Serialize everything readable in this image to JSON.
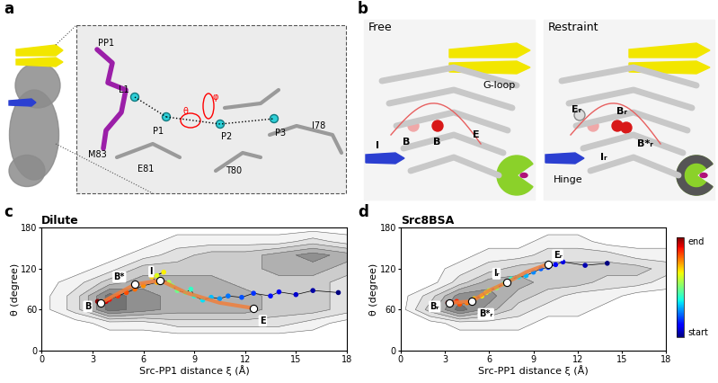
{
  "panel_labels": [
    "a",
    "b",
    "c",
    "d"
  ],
  "panel_a": {
    "labels": [
      "PP1",
      "L1",
      "M83",
      "P1",
      "E81",
      "P2",
      "T80",
      "P3",
      "I78",
      "θ",
      "φ"
    ]
  },
  "panel_b": {
    "left": {
      "title": "Free",
      "labels": [
        "G-loop",
        "B",
        "I",
        "B",
        "E"
      ]
    },
    "right": {
      "title": "Restraint",
      "labels": [
        "Eᵣ",
        "Bᵣ",
        "B*ᵣ",
        "Iᵣ",
        "Hinge"
      ]
    }
  },
  "chart_data": [
    {
      "type": "scatter",
      "title": "Dilute",
      "x_label": "Src-PP1 distance ξ (Å)",
      "y_label": "θ (degree)",
      "xlim": [
        0,
        18
      ],
      "ylim": [
        0,
        180
      ],
      "xticks": [
        0,
        3,
        6,
        9,
        12,
        15,
        18
      ],
      "yticks": [
        0,
        60,
        120,
        180
      ],
      "landscape": {
        "x": [
          0,
          2,
          4,
          6,
          8,
          10,
          12,
          14,
          16,
          18
        ],
        "y": [
          0,
          20,
          40,
          60,
          80,
          100,
          120,
          140,
          160,
          180
        ],
        "z": [
          [
            0,
            0,
            0,
            0,
            0,
            0,
            0,
            0,
            0,
            0
          ],
          [
            0,
            0,
            0,
            0,
            0,
            0,
            0,
            0,
            0,
            0
          ],
          [
            0,
            0,
            1,
            1,
            2,
            2,
            2,
            2,
            1,
            0
          ],
          [
            0,
            2,
            6,
            5,
            4,
            4,
            4,
            3,
            3,
            2
          ],
          [
            0,
            2,
            6,
            5,
            4,
            4,
            4,
            3,
            3,
            2
          ],
          [
            0,
            1,
            3,
            4,
            4,
            4,
            3,
            3,
            3,
            2
          ],
          [
            0,
            0,
            1,
            3,
            3,
            3,
            3,
            4,
            4,
            3
          ],
          [
            0,
            0,
            0,
            1,
            2,
            3,
            3,
            4,
            5,
            4
          ],
          [
            0,
            0,
            0,
            0,
            1,
            1,
            1,
            1,
            2,
            1
          ],
          [
            0,
            0,
            0,
            0,
            0,
            0,
            0,
            0,
            0,
            0
          ]
        ]
      },
      "trajectory": {
        "x": [
          17.5,
          16,
          15,
          14,
          13.5,
          12.5,
          11.8,
          11,
          10.5,
          10,
          9.5,
          9,
          8.8,
          8.5,
          8,
          7.7,
          7.5,
          7,
          6.8,
          7.2,
          6.5,
          6.8,
          6,
          5.5,
          5,
          4.5,
          4,
          3.8,
          3.5,
          3.3
        ],
        "y": [
          85,
          88,
          82,
          86,
          80,
          84,
          78,
          80,
          76,
          78,
          74,
          80,
          90,
          85,
          88,
          95,
          100,
          105,
          110,
          115,
          108,
          100,
          95,
          90,
          85,
          80,
          75,
          72,
          70,
          72
        ]
      },
      "path": {
        "x": [
          3.5,
          5.5,
          7,
          8.5,
          10.5,
          12.5
        ],
        "y": [
          70,
          97,
          103,
          85,
          70,
          62
        ],
        "color": "#f07f3c"
      },
      "states": [
        {
          "label": "B",
          "x": 3.5,
          "y": 70
        },
        {
          "label": "B*",
          "x": 5.5,
          "y": 97
        },
        {
          "label": "I",
          "x": 7,
          "y": 103
        },
        {
          "label": "E",
          "x": 12.5,
          "y": 62
        }
      ]
    },
    {
      "type": "scatter",
      "title": "Src8BSA",
      "x_label": "Src-PP1 distance ξ (Å)",
      "y_label": "θ (degree)",
      "xlim": [
        0,
        18
      ],
      "ylim": [
        0,
        180
      ],
      "xticks": [
        0,
        3,
        6,
        9,
        12,
        15,
        18
      ],
      "yticks": [
        0,
        60,
        120,
        180
      ],
      "landscape": {
        "x": [
          0,
          2,
          4,
          6,
          8,
          10,
          12,
          14,
          16,
          18
        ],
        "y": [
          0,
          20,
          40,
          60,
          80,
          100,
          120,
          140,
          160,
          180
        ],
        "z": [
          [
            0,
            0,
            0,
            0,
            0,
            0,
            0,
            0,
            0,
            0
          ],
          [
            0,
            0,
            0,
            0,
            0,
            0,
            0,
            0,
            0,
            0
          ],
          [
            0,
            0,
            1,
            1,
            1,
            0,
            0,
            0,
            0,
            0
          ],
          [
            0,
            3,
            6,
            4,
            2,
            1,
            1,
            0,
            0,
            0
          ],
          [
            0,
            2,
            5,
            5,
            3,
            2,
            1,
            1,
            0,
            0
          ],
          [
            0,
            0,
            2,
            4,
            4,
            3,
            3,
            2,
            2,
            1
          ],
          [
            0,
            0,
            1,
            2,
            3,
            3,
            3,
            3,
            3,
            2
          ],
          [
            0,
            0,
            0,
            1,
            1,
            2,
            2,
            2,
            1,
            1
          ],
          [
            0,
            0,
            0,
            0,
            0,
            1,
            1,
            0,
            0,
            0
          ],
          [
            0,
            0,
            0,
            0,
            0,
            0,
            0,
            0,
            0,
            0
          ]
        ]
      },
      "trajectory": {
        "x": [
          14,
          12.5,
          11,
          10.5,
          10,
          9.5,
          9,
          8.5,
          8,
          7.5,
          7.2,
          7,
          6.5,
          6,
          5.8,
          5.5,
          5,
          4.8,
          4.5,
          4,
          3.8,
          3.5,
          3.3,
          3.2
        ],
        "y": [
          128,
          125,
          130,
          126,
          122,
          120,
          115,
          110,
          108,
          105,
          100,
          98,
          92,
          88,
          85,
          80,
          76,
          72,
          70,
          68,
          72,
          70,
          68,
          70
        ]
      },
      "path": {
        "x": [
          3.3,
          4.8,
          6,
          7.2,
          8.5,
          10
        ],
        "y": [
          70,
          72,
          88,
          100,
          115,
          127
        ],
        "color": "#f07f3c"
      },
      "states": [
        {
          "label": "Bᵣ",
          "x": 3.3,
          "y": 70
        },
        {
          "label": "B*ᵣ",
          "x": 4.8,
          "y": 72
        },
        {
          "label": "Iᵣ",
          "x": 7.2,
          "y": 100
        },
        {
          "label": "Eᵣ",
          "x": 10,
          "y": 127
        }
      ],
      "colorbar": {
        "labels": [
          "start",
          "end"
        ]
      }
    }
  ]
}
